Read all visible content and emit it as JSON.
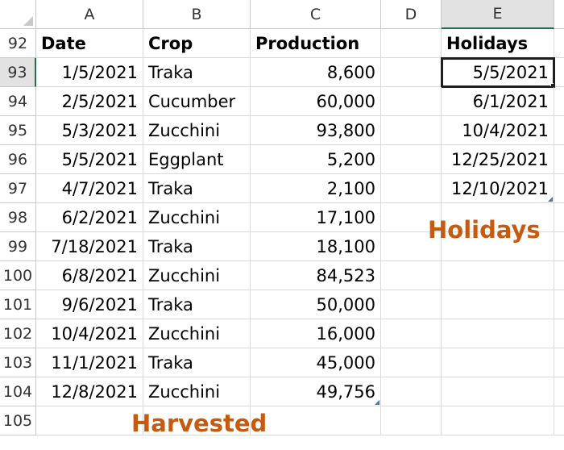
{
  "columns": [
    "A",
    "B",
    "C",
    "D",
    "E"
  ],
  "header_row": {
    "row_number": "92",
    "a": "Date",
    "b": "Crop",
    "c": "Production",
    "e": "Holidays"
  },
  "rows": [
    {
      "n": "93",
      "date": "1/5/2021",
      "crop": "Traka",
      "prod": "8,600",
      "holiday": "5/5/2021"
    },
    {
      "n": "94",
      "date": "2/5/2021",
      "crop": "Cucumber",
      "prod": "60,000",
      "holiday": "6/1/2021"
    },
    {
      "n": "95",
      "date": "5/3/2021",
      "crop": "Zucchini",
      "prod": "93,800",
      "holiday": "10/4/2021"
    },
    {
      "n": "96",
      "date": "5/5/2021",
      "crop": "Eggplant",
      "prod": "5,200",
      "holiday": "12/25/2021"
    },
    {
      "n": "97",
      "date": "4/7/2021",
      "crop": "Traka",
      "prod": "2,100",
      "holiday": "12/10/2021"
    },
    {
      "n": "98",
      "date": "6/2/2021",
      "crop": "Zucchini",
      "prod": "17,100",
      "holiday": ""
    },
    {
      "n": "99",
      "date": "7/18/2021",
      "crop": "Traka",
      "prod": "18,100",
      "holiday": ""
    },
    {
      "n": "100",
      "date": "6/8/2021",
      "crop": "Zucchini",
      "prod": "84,523",
      "holiday": ""
    },
    {
      "n": "101",
      "date": "9/6/2021",
      "crop": "Traka",
      "prod": "50,000",
      "holiday": ""
    },
    {
      "n": "102",
      "date": "10/4/2021",
      "crop": "Zucchini",
      "prod": "16,000",
      "holiday": ""
    },
    {
      "n": "103",
      "date": "11/1/2021",
      "crop": "Traka",
      "prod": "45,000",
      "holiday": ""
    },
    {
      "n": "104",
      "date": "12/8/2021",
      "crop": "Zucchini",
      "prod": "49,756",
      "holiday": ""
    },
    {
      "n": "105",
      "date": "",
      "crop": "",
      "prod": "",
      "holiday": ""
    }
  ],
  "captions": {
    "harvested": "Harvested",
    "holidays": "Holidays"
  },
  "colors": {
    "caption": "#c55a11",
    "selection": "#1f1f1f",
    "table_marker": "#4472c4"
  },
  "selected_cell": "E93"
}
